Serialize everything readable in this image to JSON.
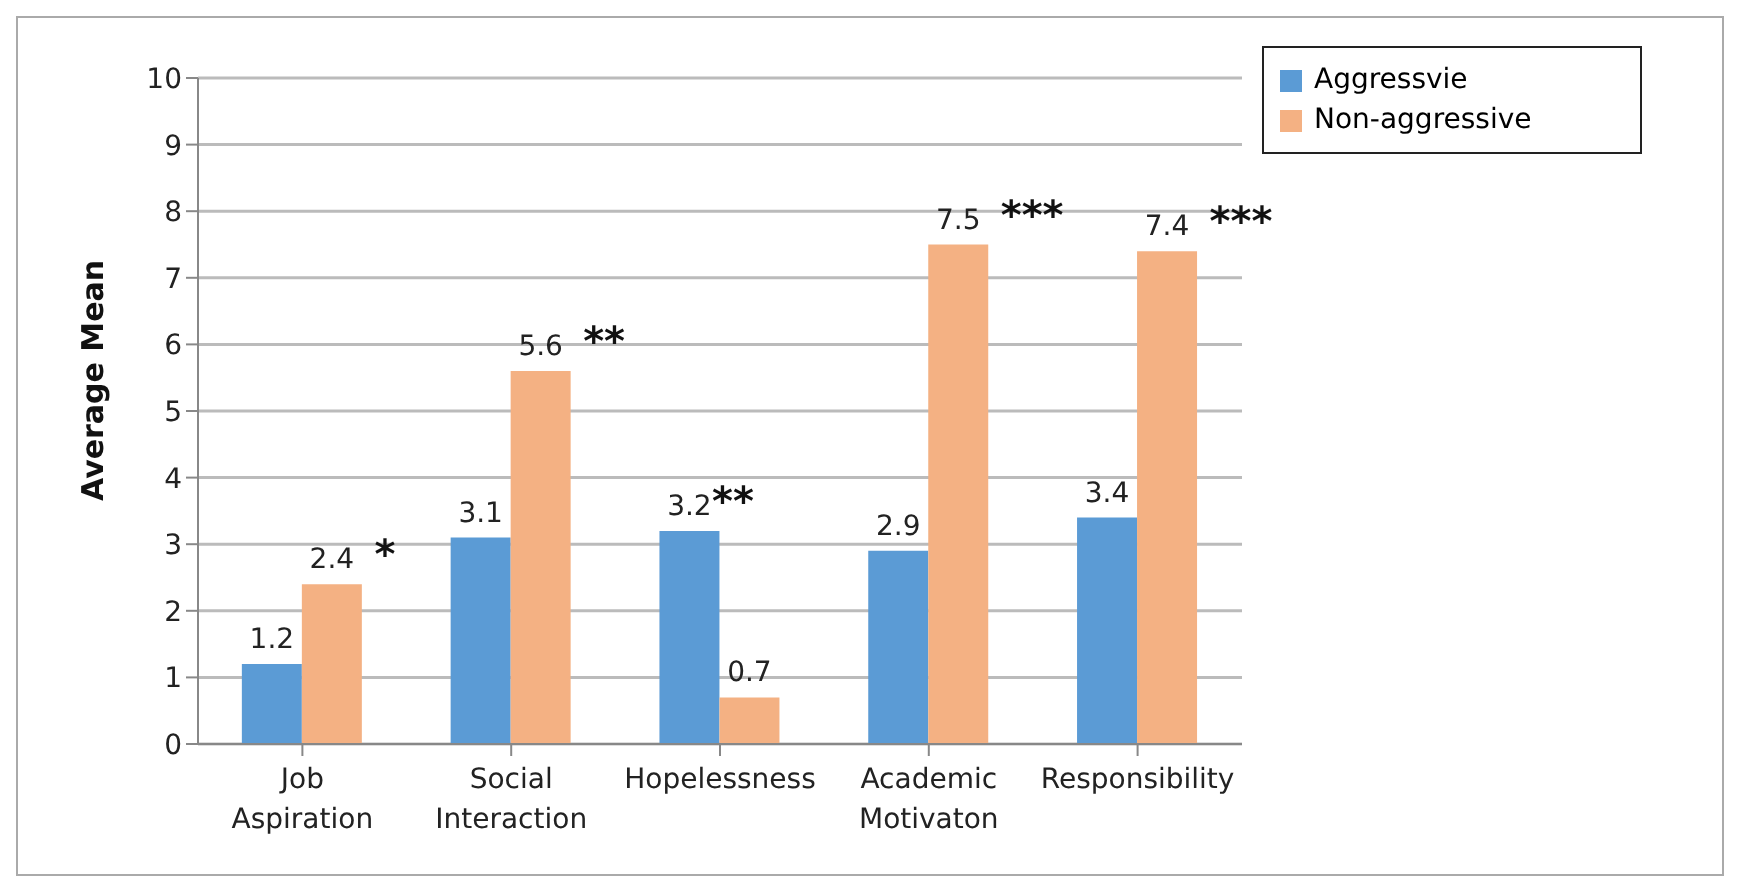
{
  "chart_data": {
    "type": "bar",
    "ylabel": "Average Mean",
    "categories": [
      "Job Aspiration",
      "Social Interaction",
      "Hopelessness",
      "Academic Motivaton",
      "Responsibility"
    ],
    "series": [
      {
        "name": "Aggressvie",
        "color": "#5b9bd5",
        "values": [
          1.2,
          3.1,
          3.2,
          2.9,
          3.4
        ]
      },
      {
        "name": "Non-aggressive",
        "color": "#f4b183",
        "values": [
          2.4,
          5.6,
          0.7,
          7.5,
          7.4
        ]
      }
    ],
    "ylim": [
      0,
      10
    ],
    "yticks": [
      0,
      1,
      2,
      3,
      4,
      5,
      6,
      7,
      8,
      9,
      10
    ],
    "grid": "y",
    "legend": "top right",
    "data_labels": true,
    "annotations": [
      {
        "text": "*",
        "x": "Job Aspiration",
        "y": 2.4
      },
      {
        "text": "**",
        "x": "Social Interaction",
        "y": 5.6
      },
      {
        "text": "**",
        "x": "Hopelessness",
        "y": 3.2
      },
      {
        "text": "***",
        "x": "Academic Motivaton",
        "y": 7.5
      },
      {
        "text": "***",
        "x": "Responsibility",
        "y": 7.4
      }
    ]
  }
}
